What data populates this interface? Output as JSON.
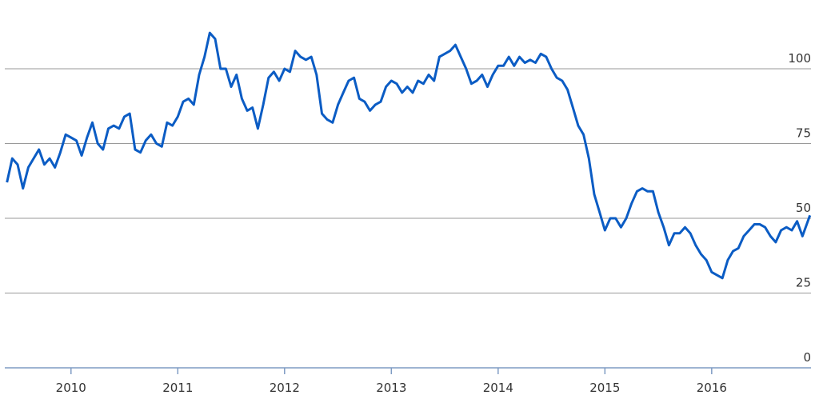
{
  "chart_data": {
    "type": "line",
    "x": [
      2009.4,
      2009.45,
      2009.5,
      2009.55,
      2009.6,
      2009.65,
      2009.7,
      2009.75,
      2009.8,
      2009.85,
      2009.9,
      2009.95,
      2010.0,
      2010.05,
      2010.1,
      2010.15,
      2010.2,
      2010.25,
      2010.3,
      2010.35,
      2010.4,
      2010.45,
      2010.5,
      2010.55,
      2010.6,
      2010.65,
      2010.7,
      2010.75,
      2010.8,
      2010.85,
      2010.9,
      2010.95,
      2011.0,
      2011.05,
      2011.1,
      2011.15,
      2011.2,
      2011.25,
      2011.3,
      2011.35,
      2011.4,
      2011.45,
      2011.5,
      2011.55,
      2011.6,
      2011.65,
      2011.7,
      2011.75,
      2011.8,
      2011.85,
      2011.9,
      2011.95,
      2012.0,
      2012.05,
      2012.1,
      2012.15,
      2012.2,
      2012.25,
      2012.3,
      2012.35,
      2012.4,
      2012.45,
      2012.5,
      2012.55,
      2012.6,
      2012.65,
      2012.7,
      2012.75,
      2012.8,
      2012.85,
      2012.9,
      2012.95,
      2013.0,
      2013.05,
      2013.1,
      2013.15,
      2013.2,
      2013.25,
      2013.3,
      2013.35,
      2013.4,
      2013.45,
      2013.5,
      2013.55,
      2013.6,
      2013.65,
      2013.7,
      2013.75,
      2013.8,
      2013.85,
      2013.9,
      2013.95,
      2014.0,
      2014.05,
      2014.1,
      2014.15,
      2014.2,
      2014.25,
      2014.3,
      2014.35,
      2014.4,
      2014.45,
      2014.5,
      2014.55,
      2014.6,
      2014.65,
      2014.7,
      2014.75,
      2014.8,
      2014.85,
      2014.9,
      2014.95,
      2015.0,
      2015.05,
      2015.1,
      2015.15,
      2015.2,
      2015.25,
      2015.3,
      2015.35,
      2015.4,
      2015.45,
      2015.5,
      2015.55,
      2015.6,
      2015.65,
      2015.7,
      2015.75,
      2015.8,
      2015.85,
      2015.9,
      2015.95,
      2016.0,
      2016.05,
      2016.1,
      2016.15,
      2016.2,
      2016.25,
      2016.3,
      2016.35,
      2016.4,
      2016.45,
      2016.5,
      2016.55,
      2016.6,
      2016.65,
      2016.7,
      2016.75,
      2016.8,
      2016.85,
      2016.9,
      2016.92
    ],
    "values": [
      62,
      70,
      68,
      60,
      67,
      70,
      73,
      68,
      70,
      67,
      72,
      78,
      77,
      76,
      71,
      77,
      82,
      75,
      73,
      80,
      81,
      80,
      84,
      85,
      73,
      72,
      76,
      78,
      75,
      74,
      82,
      81,
      84,
      89,
      90,
      88,
      98,
      104,
      112,
      110,
      100,
      100,
      94,
      98,
      90,
      86,
      87,
      80,
      88,
      97,
      99,
      96,
      100,
      99,
      106,
      104,
      103,
      104,
      98,
      85,
      83,
      82,
      88,
      92,
      96,
      97,
      90,
      89,
      86,
      88,
      89,
      94,
      96,
      95,
      92,
      94,
      92,
      96,
      95,
      98,
      96,
      104,
      105,
      106,
      108,
      104,
      100,
      95,
      96,
      98,
      94,
      98,
      101,
      101,
      104,
      101,
      104,
      102,
      103,
      102,
      105,
      104,
      100,
      97,
      96,
      93,
      87,
      81,
      78,
      70,
      58,
      52,
      46,
      50,
      50,
      47,
      50,
      55,
      59,
      60,
      59,
      59,
      52,
      47,
      41,
      45,
      45,
      47,
      45,
      41,
      38,
      36,
      32,
      31,
      30,
      36,
      39,
      40,
      44,
      46,
      48,
      48,
      47,
      44,
      42,
      46,
      47,
      46,
      49,
      44,
      49,
      51
    ],
    "color": "#0b5cc4",
    "xlim": [
      2009.38,
      2016.93
    ],
    "xticks": [
      2010,
      2011,
      2012,
      2013,
      2014,
      2015,
      2016
    ],
    "ylim": [
      0,
      123
    ],
    "yticks": [
      0,
      25,
      50,
      75,
      100
    ],
    "grid": true
  }
}
